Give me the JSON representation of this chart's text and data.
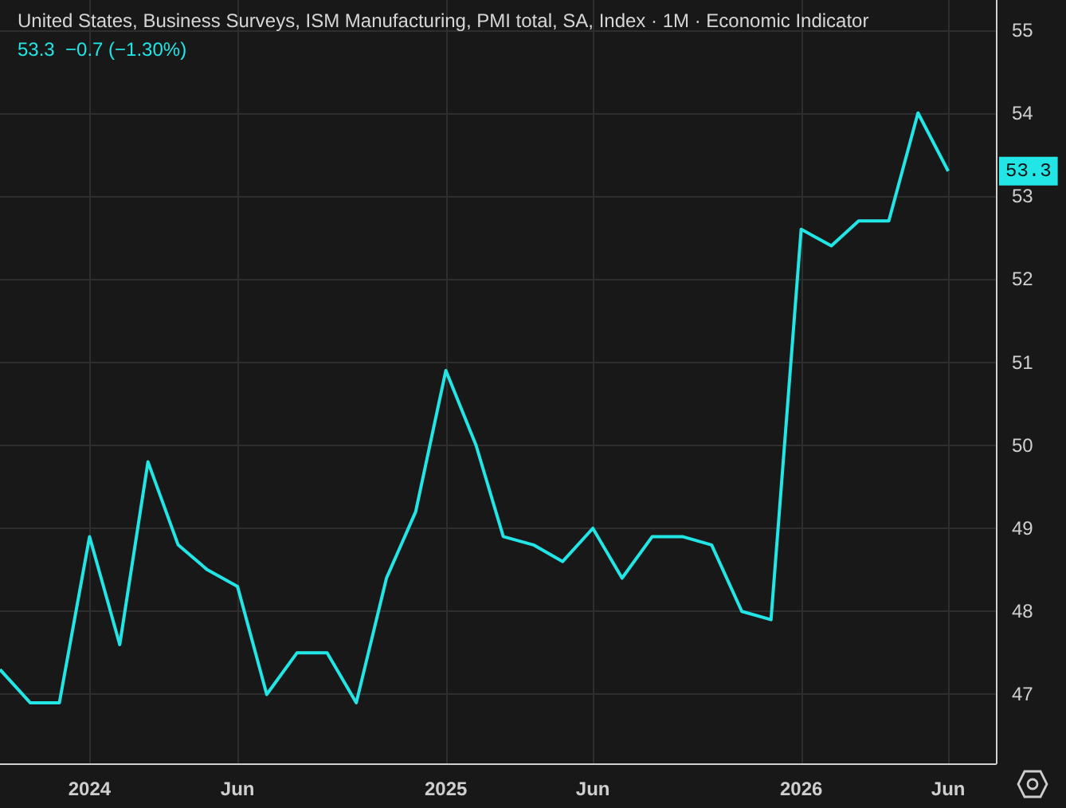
{
  "chart_data": {
    "type": "line",
    "title": "United States, Business Surveys, ISM Manufacturing, PMI total, SA, Index · 1M · Economic Indicator",
    "subtitle": "53.3  −0.7 (−1.30%)",
    "x": [
      "2023-10",
      "2023-11",
      "2023-12",
      "2024-01",
      "2024-02",
      "2024-03",
      "2024-04",
      "2024-05",
      "2024-06",
      "2024-07",
      "2024-08",
      "2024-09",
      "2024-10",
      "2024-11",
      "2024-12",
      "2025-01",
      "2025-02",
      "2025-03",
      "2025-04",
      "2025-05",
      "2025-06",
      "2025-07",
      "2025-08",
      "2025-09",
      "2025-10",
      "2025-11",
      "2025-12",
      "2026-01",
      "2026-02",
      "2026-03",
      "2026-04",
      "2026-05",
      "2026-06"
    ],
    "series": [
      {
        "color": "#22e6e6",
        "values": [
          47.3,
          46.9,
          46.9,
          48.9,
          47.6,
          49.8,
          48.8,
          48.5,
          48.3,
          47.0,
          47.5,
          47.5,
          46.9,
          48.4,
          49.2,
          50.9,
          50.0,
          48.9,
          48.8,
          48.6,
          49.0,
          48.4,
          48.9,
          48.9,
          48.8,
          48.0,
          47.9,
          52.6,
          52.4,
          52.7,
          52.7,
          54.0,
          53.3
        ]
      }
    ],
    "xlim": [
      "2023-10",
      "2026-07-20"
    ],
    "xticks": [
      {
        "value": "2024-01",
        "label": "2024"
      },
      {
        "value": "2024-06",
        "label": "Jun"
      },
      {
        "value": "2025-01",
        "label": "2025"
      },
      {
        "value": "2025-06",
        "label": "Jun"
      },
      {
        "value": "2026-01",
        "label": "2026"
      },
      {
        "value": "2026-06",
        "label": "Jun"
      }
    ],
    "ylim": [
      46.17,
      55.36
    ],
    "yticks": [
      47,
      48,
      49,
      50,
      51,
      52,
      53,
      54,
      55
    ],
    "annotations": [
      {
        "text": "53.3",
        "x": "2026-06",
        "y": 53.3
      }
    ],
    "grid": true,
    "marker": "none",
    "line_style": "solid"
  }
}
